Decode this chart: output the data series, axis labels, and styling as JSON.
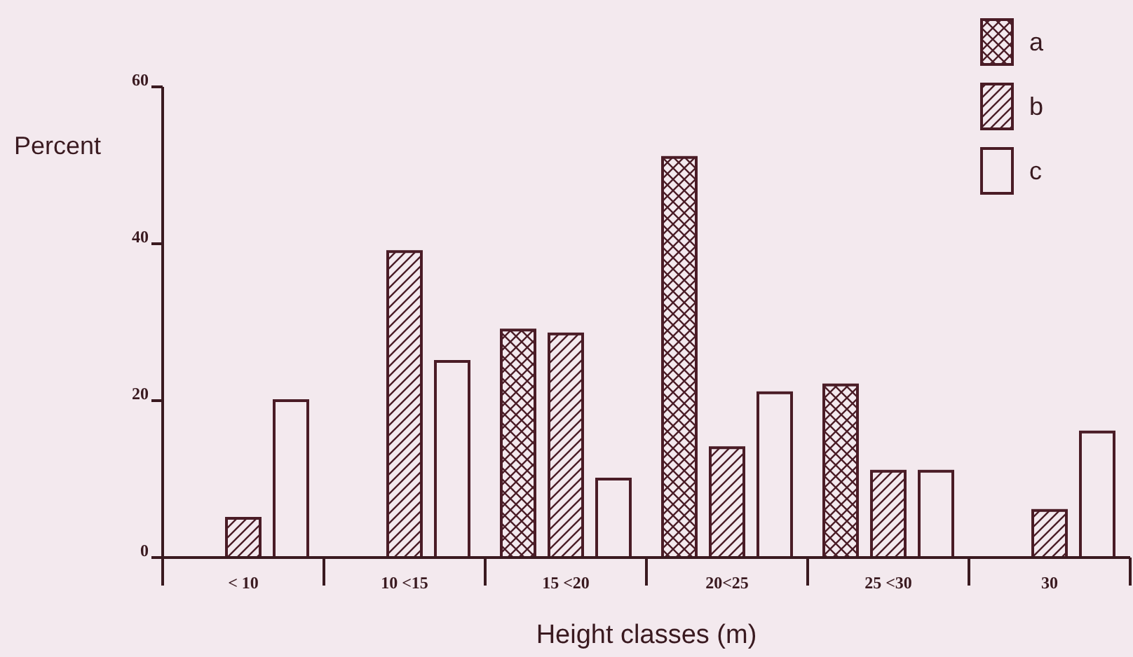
{
  "chart_data": {
    "type": "bar",
    "xlabel": "Height classes (m)",
    "ylabel": "Percent",
    "categories": [
      "< 10",
      "10 <15",
      "15 <20",
      "20<25",
      "25 <30",
      "30"
    ],
    "series": [
      {
        "name": "a",
        "color": "#4a1c26",
        "values": [
          null,
          null,
          29,
          51,
          22,
          null
        ]
      },
      {
        "name": "b",
        "color": "#4a1c26",
        "values": [
          5,
          39,
          28.5,
          14,
          11,
          6
        ]
      },
      {
        "name": "c",
        "color": "#4a1c26",
        "values": [
          20,
          25,
          10,
          21,
          11,
          16
        ]
      }
    ],
    "ylim": [
      0,
      60
    ],
    "yticks": [
      0,
      20,
      40,
      60
    ],
    "grid": false,
    "legend": "top right"
  }
}
